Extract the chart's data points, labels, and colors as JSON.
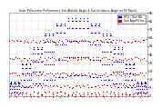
{
  "title": "Solar PV/Inverter Performance Sun Altitude Angle & Sun Incidence Angle on PV Panels",
  "legend_labels": [
    "HOz : Sun Alt.",
    "Sun App/PV Inc."
  ],
  "legend_colors": [
    "#0000cc",
    "#cc0000"
  ],
  "ylim": [
    0,
    90
  ],
  "yticks": [
    0,
    9,
    18,
    27,
    36,
    45,
    54,
    63,
    72,
    81,
    90
  ],
  "background_color": "#ffffff",
  "plot_bg": "#ffffff",
  "grid_color": "#aaaaaa",
  "blue_color": "#0000cc",
  "red_color": "#cc0000",
  "n_months": 12,
  "hours_per_day": 12,
  "dot_size": 0.8
}
